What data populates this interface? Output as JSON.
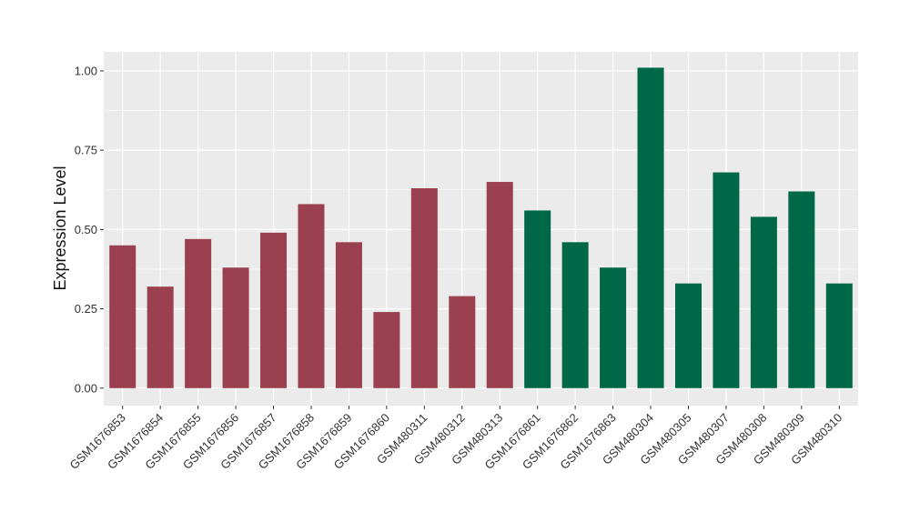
{
  "chart_data": {
    "type": "bar",
    "ylabel": "Expression Level",
    "xlabel": "",
    "ylim": [
      -0.055,
      1.06
    ],
    "yticks": [
      0.0,
      0.25,
      0.5,
      0.75,
      1.0
    ],
    "ytick_labels": [
      "0.00",
      "0.25",
      "0.50",
      "0.75",
      "1.00"
    ],
    "grid": true,
    "categories": [
      "GSM1676853",
      "GSM1676854",
      "GSM1676855",
      "GSM1676856",
      "GSM1676857",
      "GSM1676858",
      "GSM1676859",
      "GSM1676860",
      "GSM480311",
      "GSM480312",
      "GSM480313",
      "GSM1676861",
      "GSM1676862",
      "GSM1676863",
      "GSM480304",
      "GSM480305",
      "GSM480307",
      "GSM480308",
      "GSM480309",
      "GSM480310"
    ],
    "values": [
      0.45,
      0.32,
      0.47,
      0.38,
      0.49,
      0.58,
      0.46,
      0.24,
      0.63,
      0.29,
      0.65,
      0.56,
      0.46,
      0.38,
      1.01,
      0.33,
      0.68,
      0.54,
      0.62,
      0.33
    ],
    "groups": [
      0,
      0,
      0,
      0,
      0,
      0,
      0,
      0,
      0,
      0,
      0,
      1,
      1,
      1,
      1,
      1,
      1,
      1,
      1,
      1
    ],
    "colors": {
      "group_0": "#9b404e",
      "group_1": "#006847",
      "panel_bg": "#ebebeb",
      "grid_major": "#ffffff"
    }
  }
}
